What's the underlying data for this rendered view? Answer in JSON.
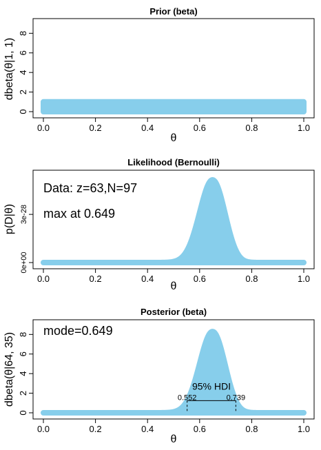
{
  "chart_data": [
    {
      "type": "area",
      "title": "Prior (beta)",
      "xlabel": "θ",
      "ylabel": "dbeta(θ|1, 1)",
      "xlim": [
        0,
        1
      ],
      "ylim": [
        0,
        9.5
      ],
      "xticks": [
        "0.0",
        "0.2",
        "0.4",
        "0.6",
        "0.8",
        "1.0"
      ],
      "yticks": [
        "0",
        "2",
        "4",
        "6",
        "8"
      ],
      "fill_color": "#87CEEB",
      "curve": {
        "kind": "beta",
        "a": 1,
        "b": 1
      }
    },
    {
      "type": "area",
      "title": "Likelihood (Bernoulli)",
      "xlabel": "θ",
      "ylabel": "p(D|θ)",
      "xlim": [
        0,
        1
      ],
      "xticks": [
        "0.0",
        "0.2",
        "0.4",
        "0.6",
        "0.8",
        "1.0"
      ],
      "yticks": [
        "0e+00",
        "3e-28"
      ],
      "fill_color": "#87CEEB",
      "curve": {
        "kind": "bernoulli",
        "z": 63,
        "N": 97
      },
      "annotations": [
        "Data: z=63,N=97",
        "max at 0.649"
      ]
    },
    {
      "type": "area",
      "title": "Posterior (beta)",
      "xlabel": "θ",
      "ylabel": "dbeta(θ|64, 35)",
      "xlim": [
        0,
        1
      ],
      "ylim": [
        0,
        9.5
      ],
      "xticks": [
        "0.0",
        "0.2",
        "0.4",
        "0.6",
        "0.8",
        "1.0"
      ],
      "yticks": [
        "0",
        "2",
        "4",
        "6",
        "8"
      ],
      "fill_color": "#87CEEB",
      "curve": {
        "kind": "beta",
        "a": 64,
        "b": 35
      },
      "annotations": [
        "mode=0.649"
      ],
      "hdi": {
        "label": "95% HDI",
        "low": 0.552,
        "high": 0.739,
        "low_label": "0.552",
        "high_label": "0.739"
      }
    }
  ]
}
